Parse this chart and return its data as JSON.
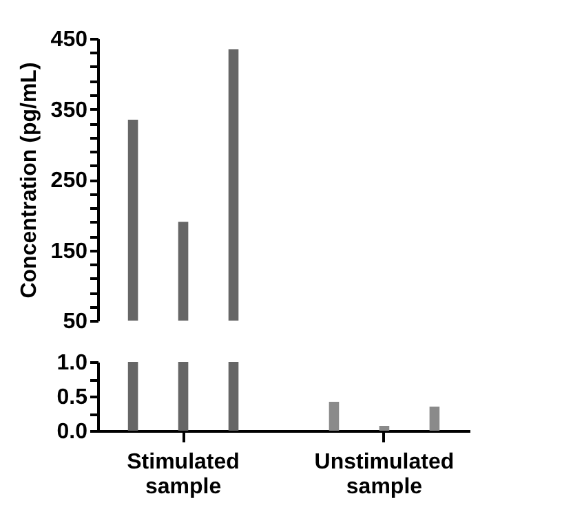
{
  "chart_data": [
    {
      "type": "bar",
      "ylabel": "Concentration (pg/mL)",
      "tick_labels": "y",
      "grid": false,
      "ylim": [
        50,
        450
      ],
      "yticks": [
        {
          "value": 50,
          "label": "50"
        },
        {
          "value": 70,
          "label": null
        },
        {
          "value": 90,
          "label": null
        },
        {
          "value": 110,
          "label": null
        },
        {
          "value": 130,
          "label": null
        },
        {
          "value": 150,
          "label": "150"
        },
        {
          "value": 170,
          "label": null
        },
        {
          "value": 190,
          "label": null
        },
        {
          "value": 210,
          "label": null
        },
        {
          "value": 230,
          "label": null
        },
        {
          "value": 250,
          "label": "250"
        },
        {
          "value": 270,
          "label": null
        },
        {
          "value": 290,
          "label": null
        },
        {
          "value": 310,
          "label": null
        },
        {
          "value": 330,
          "label": null
        },
        {
          "value": 350,
          "label": "350"
        },
        {
          "value": 370,
          "label": null
        },
        {
          "value": 390,
          "label": null
        },
        {
          "value": 410,
          "label": null
        },
        {
          "value": 430,
          "label": null
        },
        {
          "value": 450,
          "label": "450"
        }
      ],
      "series": [
        {
          "colors": [
            "#666666",
            "#8a8a8a"
          ],
          "values": [
            335,
            null
          ]
        },
        {
          "colors": [
            "#666666",
            "#8a8a8a"
          ],
          "values": [
            190,
            null
          ]
        },
        {
          "colors": [
            "#666666",
            "#8a8a8a"
          ],
          "values": [
            435,
            null
          ]
        }
      ]
    },
    {
      "type": "bar",
      "categories": [
        "Stimulated\nsample",
        "Unstimulated\nsample"
      ],
      "grid": false,
      "ylim": [
        0,
        1.0
      ],
      "yticks": [
        {
          "value": 0,
          "label": "0.0"
        },
        {
          "value": 0.25,
          "label": null
        },
        {
          "value": 0.5,
          "label": "0.5"
        },
        {
          "value": 0.75,
          "label": null
        },
        {
          "value": 1.0,
          "label": "1.0"
        }
      ],
      "series": [
        {
          "colors": [
            "#666666",
            "#8a8a8a"
          ],
          "values": [
            1.0,
            0.42
          ]
        },
        {
          "colors": [
            "#666666",
            "#8a8a8a"
          ],
          "values": [
            1.0,
            0.07
          ]
        },
        {
          "colors": [
            "#666666",
            "#8a8a8a"
          ],
          "values": [
            1.0,
            0.35
          ]
        }
      ]
    }
  ]
}
